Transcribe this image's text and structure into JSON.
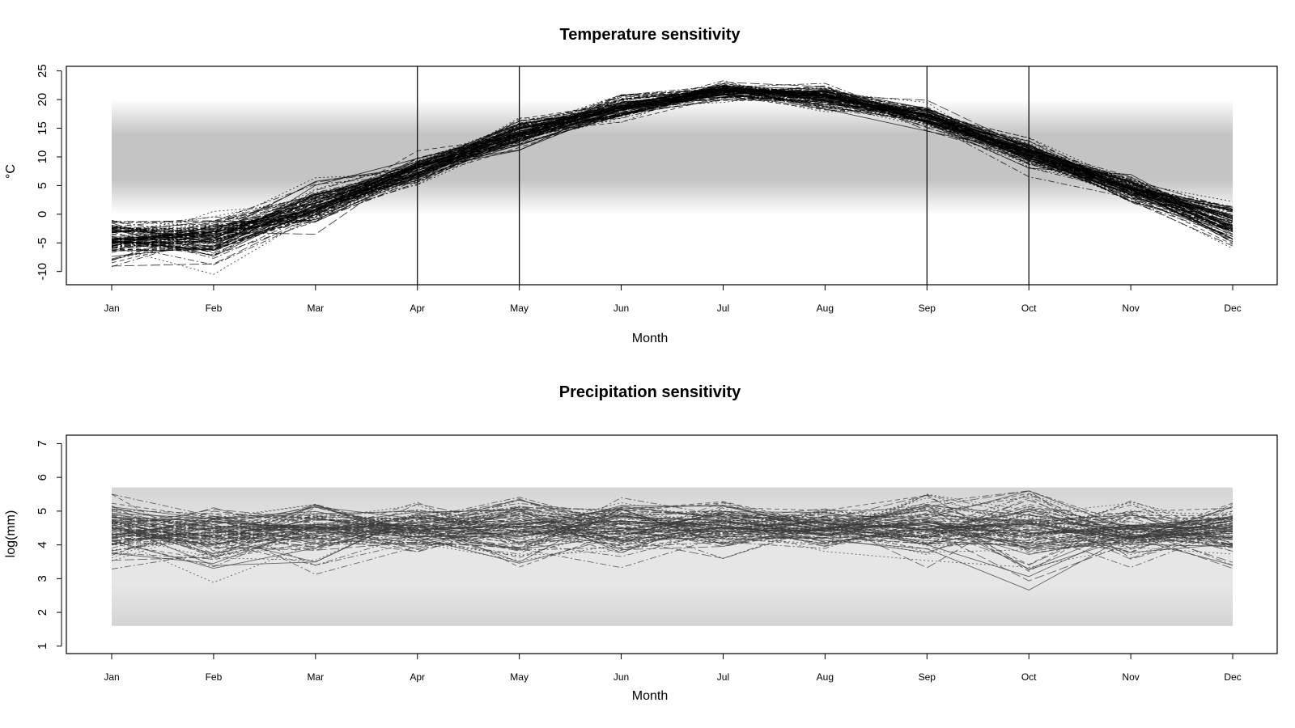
{
  "chart_data": [
    {
      "type": "line",
      "title": "Temperature sensitivity",
      "xlabel": "Month",
      "ylabel": "°C",
      "categories": [
        "Jan",
        "Feb",
        "Mar",
        "Apr",
        "May",
        "Jun",
        "Jul",
        "Aug",
        "Sep",
        "Oct",
        "Nov",
        "Dec"
      ],
      "yticks": [
        -10,
        -5,
        0,
        5,
        10,
        15,
        20,
        25
      ],
      "ylim": [
        -12.3,
        25.8
      ],
      "band": {
        "from": 0,
        "to": 20,
        "color_edge": "#ffffff",
        "color_core": "#c4c4c4"
      },
      "vertical_lines": [
        "Apr",
        "May",
        "Sep",
        "Oct"
      ],
      "ensemble_mean": [
        -4.5,
        -4.0,
        1.5,
        7.5,
        14.0,
        18.5,
        21.5,
        20.5,
        17.0,
        10.5,
        4.5,
        -2.0
      ],
      "ensemble_low": [
        -10.0,
        -10.5,
        -3.5,
        5.0,
        10.0,
        16.0,
        19.5,
        17.0,
        14.5,
        6.5,
        1.0,
        -9.0
      ],
      "ensemble_high": [
        2.0,
        0.5,
        7.0,
        11.5,
        17.5,
        22.0,
        24.0,
        23.0,
        20.0,
        13.5,
        7.5,
        2.5
      ],
      "ensemble_size": 100,
      "line_color": "#000000"
    },
    {
      "type": "line",
      "title": "Precipitation sensitivity",
      "xlabel": "Month",
      "ylabel": "log(mm)",
      "categories": [
        "Jan",
        "Feb",
        "Mar",
        "Apr",
        "May",
        "Jun",
        "Jul",
        "Aug",
        "Sep",
        "Oct",
        "Nov",
        "Dec"
      ],
      "yticks": [
        1,
        2,
        3,
        4,
        5,
        6,
        7
      ],
      "ylim": [
        0.78,
        7.25
      ],
      "band": {
        "from": 1.6,
        "to": 5.7,
        "color_edge": "#d4d4d4",
        "color_core": "#e6e6e6"
      },
      "vertical_lines": [],
      "ensemble_mean": [
        4.4,
        4.3,
        4.4,
        4.5,
        4.5,
        4.5,
        4.6,
        4.5,
        4.5,
        4.4,
        4.4,
        4.4
      ],
      "ensemble_low": [
        2.8,
        2.4,
        2.5,
        3.5,
        2.6,
        3.1,
        3.6,
        3.8,
        2.8,
        1.9,
        3.1,
        3.1
      ],
      "ensemble_high": [
        5.5,
        5.1,
        5.2,
        5.4,
        5.5,
        5.5,
        5.6,
        5.7,
        5.5,
        5.6,
        5.3,
        5.4
      ],
      "ensemble_size": 100,
      "line_color": "#3a3a3a"
    }
  ]
}
